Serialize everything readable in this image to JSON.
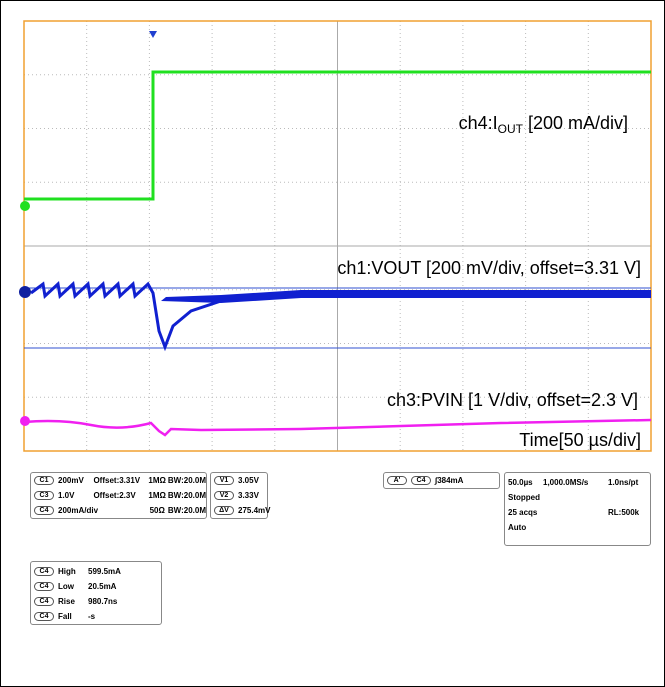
{
  "labels": {
    "ch4": {
      "prefix": "ch4:I",
      "sub": "OUT",
      "suffix": " [200 mA/div]"
    },
    "ch1": "ch1:VOUT [200 mV/div,  offset=3.31 V]",
    "ch3": "ch3:PVIN [1 V/div,  offset=2.3 V]",
    "time": "Time[50 µs/div]"
  },
  "channels": [
    [
      "C1",
      "200mV",
      "Offset:3.31V",
      "1MΩ",
      "BW:20.0M"
    ],
    [
      "C3",
      "1.0V",
      "Offset:2.3V",
      "1MΩ",
      "BW:20.0M"
    ],
    [
      "C4",
      "200mA/div",
      "",
      "50Ω",
      "BW:20.0M"
    ]
  ],
  "cursors": [
    [
      "V1",
      "3.05V"
    ],
    [
      "V2",
      "3.33V"
    ],
    [
      "ΔV",
      "275.4mV"
    ]
  ],
  "trigger": {
    "mode": "A'",
    "source": "C4",
    "level": "384mA"
  },
  "timebase": [
    [
      "50.0µs",
      "1,000.0MS/s",
      "1.0ns/pt"
    ],
    [
      "Stopped",
      "",
      ""
    ],
    [
      "25 acqs",
      "",
      "RL:500k"
    ],
    [
      "Auto",
      "",
      ""
    ]
  ],
  "measurements": [
    [
      "C4",
      "High",
      "599.5mA"
    ],
    [
      "C4",
      "Low",
      "20.5mA"
    ],
    [
      "C4",
      "Rise",
      "980.7ns"
    ],
    [
      "C4",
      "Fall",
      "-s"
    ]
  ]
}
